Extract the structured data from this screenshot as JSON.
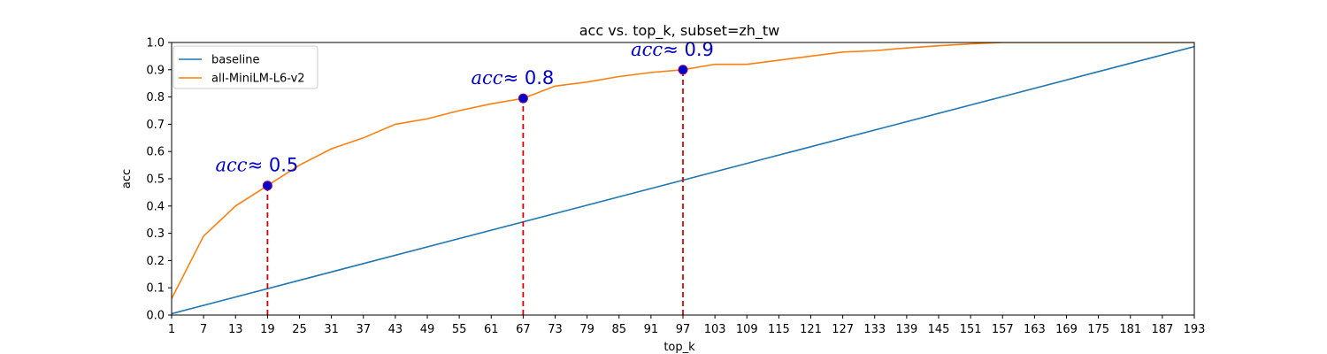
{
  "chart_data": {
    "type": "line",
    "title": "acc vs. top_k, subset=zh_tw",
    "xlabel": "top_k",
    "ylabel": "acc",
    "xlim": [
      1,
      193
    ],
    "ylim": [
      0.0,
      1.0
    ],
    "xticks": [
      1,
      7,
      13,
      19,
      25,
      31,
      37,
      43,
      49,
      55,
      61,
      67,
      73,
      79,
      85,
      91,
      97,
      103,
      109,
      115,
      121,
      127,
      133,
      139,
      145,
      151,
      157,
      163,
      169,
      175,
      181,
      187,
      193
    ],
    "yticks": [
      0.0,
      0.1,
      0.2,
      0.3,
      0.4,
      0.5,
      0.6,
      0.7,
      0.8,
      0.9,
      1.0
    ],
    "ytick_labels": [
      "0.0",
      "0.1",
      "0.2",
      "0.3",
      "0.4",
      "0.5",
      "0.6",
      "0.7",
      "0.8",
      "0.9",
      "1.0"
    ],
    "grid": false,
    "legend_position": "top-left",
    "series": [
      {
        "name": "baseline",
        "color": "#1f77b4",
        "x": [
          1,
          193
        ],
        "y": [
          0.005,
          0.985
        ]
      },
      {
        "name": "all-MiniLM-L6-v2",
        "color": "#ff7f0e",
        "x": [
          1,
          7,
          13,
          19,
          25,
          31,
          37,
          43,
          49,
          55,
          61,
          67,
          73,
          79,
          85,
          91,
          97,
          103,
          109,
          115,
          121,
          127,
          133,
          139,
          145,
          151,
          157,
          163,
          169,
          175,
          181,
          187,
          193
        ],
        "y": [
          0.06,
          0.29,
          0.4,
          0.475,
          0.55,
          0.61,
          0.65,
          0.7,
          0.72,
          0.75,
          0.775,
          0.795,
          0.84,
          0.855,
          0.875,
          0.89,
          0.9,
          0.92,
          0.92,
          0.935,
          0.95,
          0.965,
          0.97,
          0.98,
          0.988,
          0.995,
          1.0,
          1.0,
          1.0,
          1.0,
          1.0,
          1.0,
          1.0
        ]
      }
    ],
    "annotations": [
      {
        "x": 19,
        "y": 0.475,
        "label_var": "acc",
        "label_rest": "≈ 0.5"
      },
      {
        "x": 67,
        "y": 0.795,
        "label_var": "acc",
        "label_rest": "≈ 0.8"
      },
      {
        "x": 97,
        "y": 0.9,
        "label_var": "acc",
        "label_rest": "≈ 0.9"
      }
    ],
    "annotation_color": "#0000cc",
    "marker_line_color": "#dd0000"
  }
}
